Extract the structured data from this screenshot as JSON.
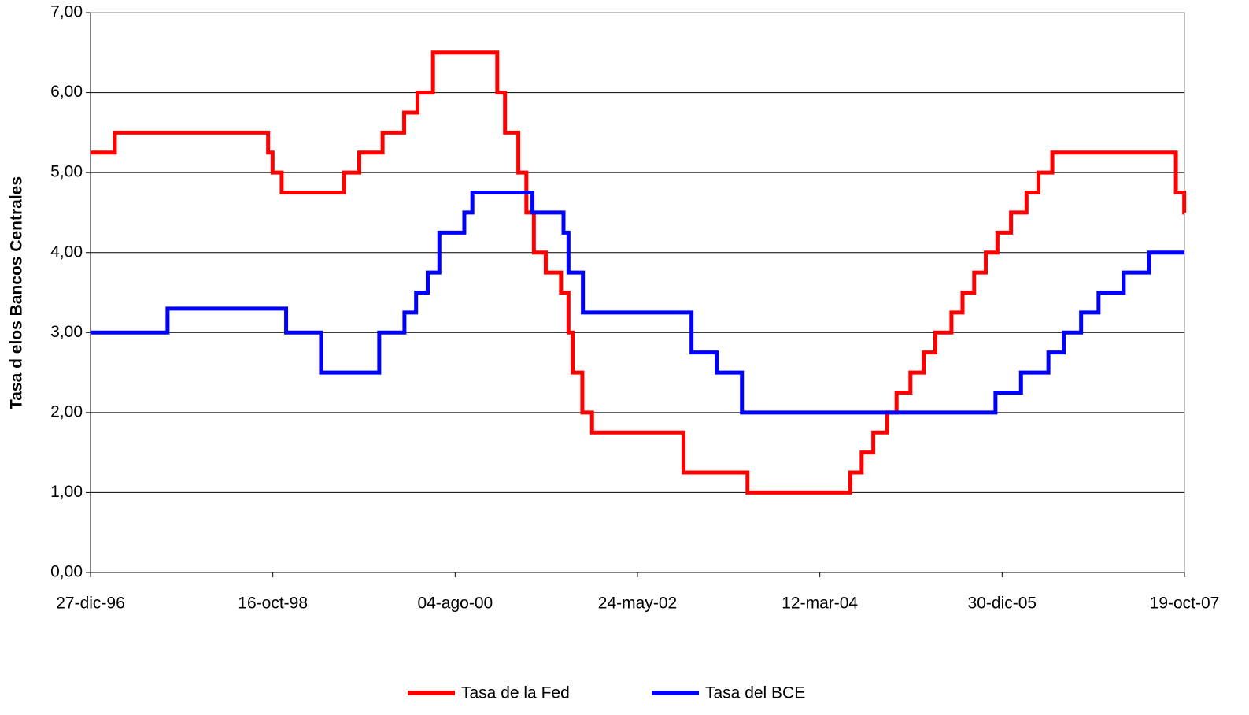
{
  "chart_data": {
    "type": "line",
    "drawstyle": "steps-post",
    "ylabel": "Tasa d elos Bancos Centrales",
    "xlim": [
      "1996-12-27",
      "2007-10-19"
    ],
    "xticks": [
      {
        "value": "1996-12-27",
        "label": "27-dic-96"
      },
      {
        "value": "1998-10-16",
        "label": "16-oct-98"
      },
      {
        "value": "2000-08-04",
        "label": "04-ago-00"
      },
      {
        "value": "2002-05-24",
        "label": "24-may-02"
      },
      {
        "value": "2004-03-12",
        "label": "12-mar-04"
      },
      {
        "value": "2005-12-30",
        "label": "30-dic-05"
      },
      {
        "value": "2007-10-19",
        "label": "19-oct-07"
      }
    ],
    "ylim": [
      0,
      7
    ],
    "yticks": [
      {
        "value": 0,
        "label": "0,00"
      },
      {
        "value": 1,
        "label": "1,00"
      },
      {
        "value": 2,
        "label": "2,00"
      },
      {
        "value": 3,
        "label": "3,00"
      },
      {
        "value": 4,
        "label": "4,00"
      },
      {
        "value": 5,
        "label": "5,00"
      },
      {
        "value": 6,
        "label": "6,00"
      },
      {
        "value": 7,
        "label": "7,00"
      }
    ],
    "grid": true,
    "legend": "bottom",
    "series": [
      {
        "name": "Tasa de la Fed",
        "color": "#ff0000",
        "x": [
          "1996-12-27",
          "1997-03-25",
          "1998-09-29",
          "1998-10-15",
          "1998-11-17",
          "1999-06-30",
          "1999-08-24",
          "1999-11-16",
          "2000-02-02",
          "2000-03-21",
          "2000-05-16",
          "2001-01-03",
          "2001-01-31",
          "2001-03-20",
          "2001-04-18",
          "2001-05-15",
          "2001-06-27",
          "2001-08-21",
          "2001-09-17",
          "2001-10-02",
          "2001-11-06",
          "2001-12-11",
          "2002-11-06",
          "2003-06-25",
          "2004-06-30",
          "2004-08-10",
          "2004-09-21",
          "2004-11-10",
          "2004-12-14",
          "2005-02-02",
          "2005-03-22",
          "2005-05-03",
          "2005-06-30",
          "2005-08-09",
          "2005-09-20",
          "2005-11-01",
          "2005-12-13",
          "2006-01-31",
          "2006-03-28",
          "2006-05-10",
          "2006-06-29",
          "2007-09-18",
          "2007-10-18",
          "2007-10-19"
        ],
        "values": [
          5.25,
          5.5,
          5.25,
          5.0,
          4.75,
          5.0,
          5.25,
          5.5,
          5.75,
          6.0,
          6.5,
          6.0,
          5.5,
          5.0,
          4.5,
          4.0,
          3.75,
          3.5,
          3.0,
          2.5,
          2.0,
          1.75,
          1.25,
          1.0,
          1.25,
          1.5,
          1.75,
          2.0,
          2.25,
          2.5,
          2.75,
          3.0,
          3.25,
          3.5,
          3.75,
          4.0,
          4.25,
          4.5,
          4.75,
          5.0,
          5.25,
          4.75,
          4.5,
          4.5
        ]
      },
      {
        "name": "Tasa del BCE",
        "color": "#0000ff",
        "x": [
          "1996-12-27",
          "1997-10-01",
          "1998-12-03",
          "1999-04-08",
          "1999-11-04",
          "2000-02-03",
          "2000-03-16",
          "2000-04-27",
          "2000-06-08",
          "2000-09-06",
          "2000-10-05",
          "2001-05-10",
          "2001-08-30",
          "2001-09-17",
          "2001-11-08",
          "2002-12-05",
          "2003-03-06",
          "2003-06-05",
          "2005-12-06",
          "2006-03-08",
          "2006-06-15",
          "2006-08-09",
          "2006-10-11",
          "2006-12-13",
          "2007-03-14",
          "2007-06-13",
          "2007-10-19"
        ],
        "values": [
          3.0,
          3.3,
          3.0,
          2.5,
          3.0,
          3.25,
          3.5,
          3.75,
          4.25,
          4.5,
          4.75,
          4.5,
          4.25,
          3.75,
          3.25,
          2.75,
          2.5,
          2.0,
          2.25,
          2.5,
          2.75,
          3.0,
          3.25,
          3.5,
          3.75,
          4.0,
          4.0
        ]
      }
    ]
  }
}
